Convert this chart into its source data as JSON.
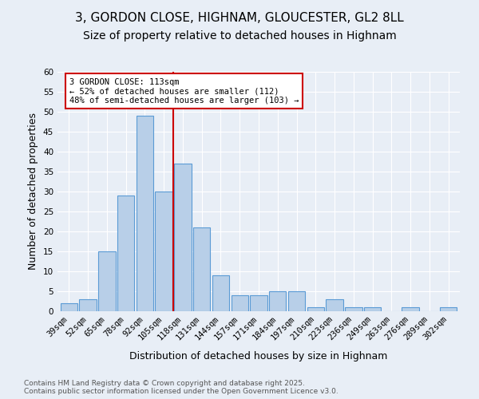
{
  "title": "3, GORDON CLOSE, HIGHNAM, GLOUCESTER, GL2 8LL",
  "subtitle": "Size of property relative to detached houses in Highnam",
  "xlabel": "Distribution of detached houses by size in Highnam",
  "ylabel": "Number of detached properties",
  "categories": [
    "39sqm",
    "52sqm",
    "65sqm",
    "78sqm",
    "92sqm",
    "105sqm",
    "118sqm",
    "131sqm",
    "144sqm",
    "157sqm",
    "171sqm",
    "184sqm",
    "197sqm",
    "210sqm",
    "223sqm",
    "236sqm",
    "249sqm",
    "263sqm",
    "276sqm",
    "289sqm",
    "302sqm"
  ],
  "values": [
    2,
    3,
    15,
    29,
    49,
    30,
    37,
    21,
    9,
    4,
    4,
    5,
    5,
    1,
    3,
    1,
    1,
    0,
    1,
    0,
    1
  ],
  "bar_color": "#b8cfe8",
  "bar_edge_color": "#5b9bd5",
  "vline_x": 5.5,
  "vline_color": "#cc0000",
  "annotation_title": "3 GORDON CLOSE: 113sqm",
  "annotation_line2": "← 52% of detached houses are smaller (112)",
  "annotation_line3": "48% of semi-detached houses are larger (103) →",
  "annotation_box_color": "#cc0000",
  "annotation_box_fill": "#ffffff",
  "ylim": [
    0,
    60
  ],
  "yticks": [
    0,
    5,
    10,
    15,
    20,
    25,
    30,
    35,
    40,
    45,
    50,
    55,
    60
  ],
  "footer": "Contains HM Land Registry data © Crown copyright and database right 2025.\nContains public sector information licensed under the Open Government Licence v3.0.",
  "background_color": "#e8eef6",
  "plot_background_color": "#e8eef6",
  "title_fontsize": 11,
  "subtitle_fontsize": 10,
  "tick_fontsize": 7.5,
  "ylabel_fontsize": 9,
  "xlabel_fontsize": 9,
  "annotation_fontsize": 7.5,
  "footer_fontsize": 6.5
}
